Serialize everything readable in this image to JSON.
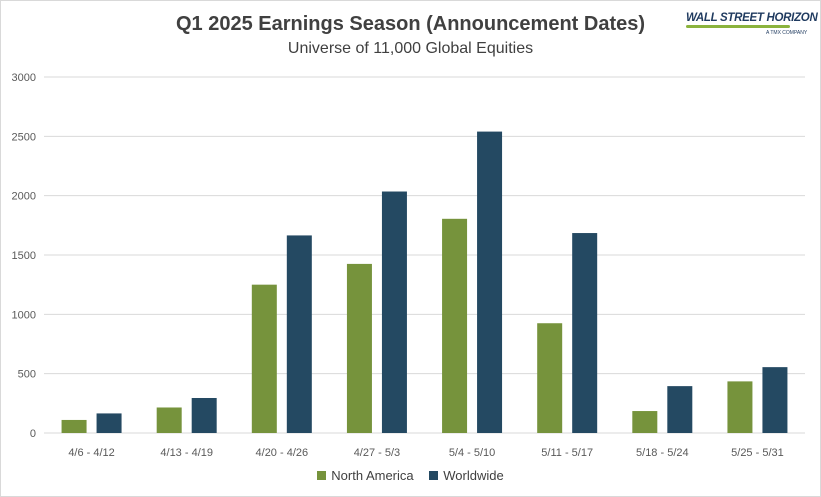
{
  "logo": {
    "name": "WALL STREET HORIZON",
    "sub": "A TMX COMPANY"
  },
  "colors": {
    "north_america": "#76933c",
    "worldwide": "#244962",
    "grid": "#d9d9d9",
    "text": "#595959"
  },
  "chart_data": {
    "type": "bar",
    "title": "Q1 2025 Earnings Season (Announcement Dates)",
    "subtitle": "Universe of 11,000 Global Equities",
    "xlabel": "",
    "ylabel": "",
    "ylim": [
      0,
      3000
    ],
    "yticks": [
      0,
      500,
      1000,
      1500,
      2000,
      2500,
      3000
    ],
    "grid": true,
    "legend_position": "bottom",
    "categories": [
      "4/6 - 4/12",
      "4/13 - 4/19",
      "4/20 - 4/26",
      "4/27 - 5/3",
      "5/4 - 5/10",
      "5/11 - 5/17",
      "5/18 - 5/24",
      "5/25 - 5/31"
    ],
    "series": [
      {
        "name": "North America",
        "color": "#76933c",
        "values": [
          110,
          215,
          1250,
          1425,
          1805,
          925,
          185,
          435
        ]
      },
      {
        "name": "Worldwide",
        "color": "#244962",
        "values": [
          165,
          295,
          1665,
          2035,
          2540,
          1685,
          395,
          555
        ]
      }
    ]
  }
}
